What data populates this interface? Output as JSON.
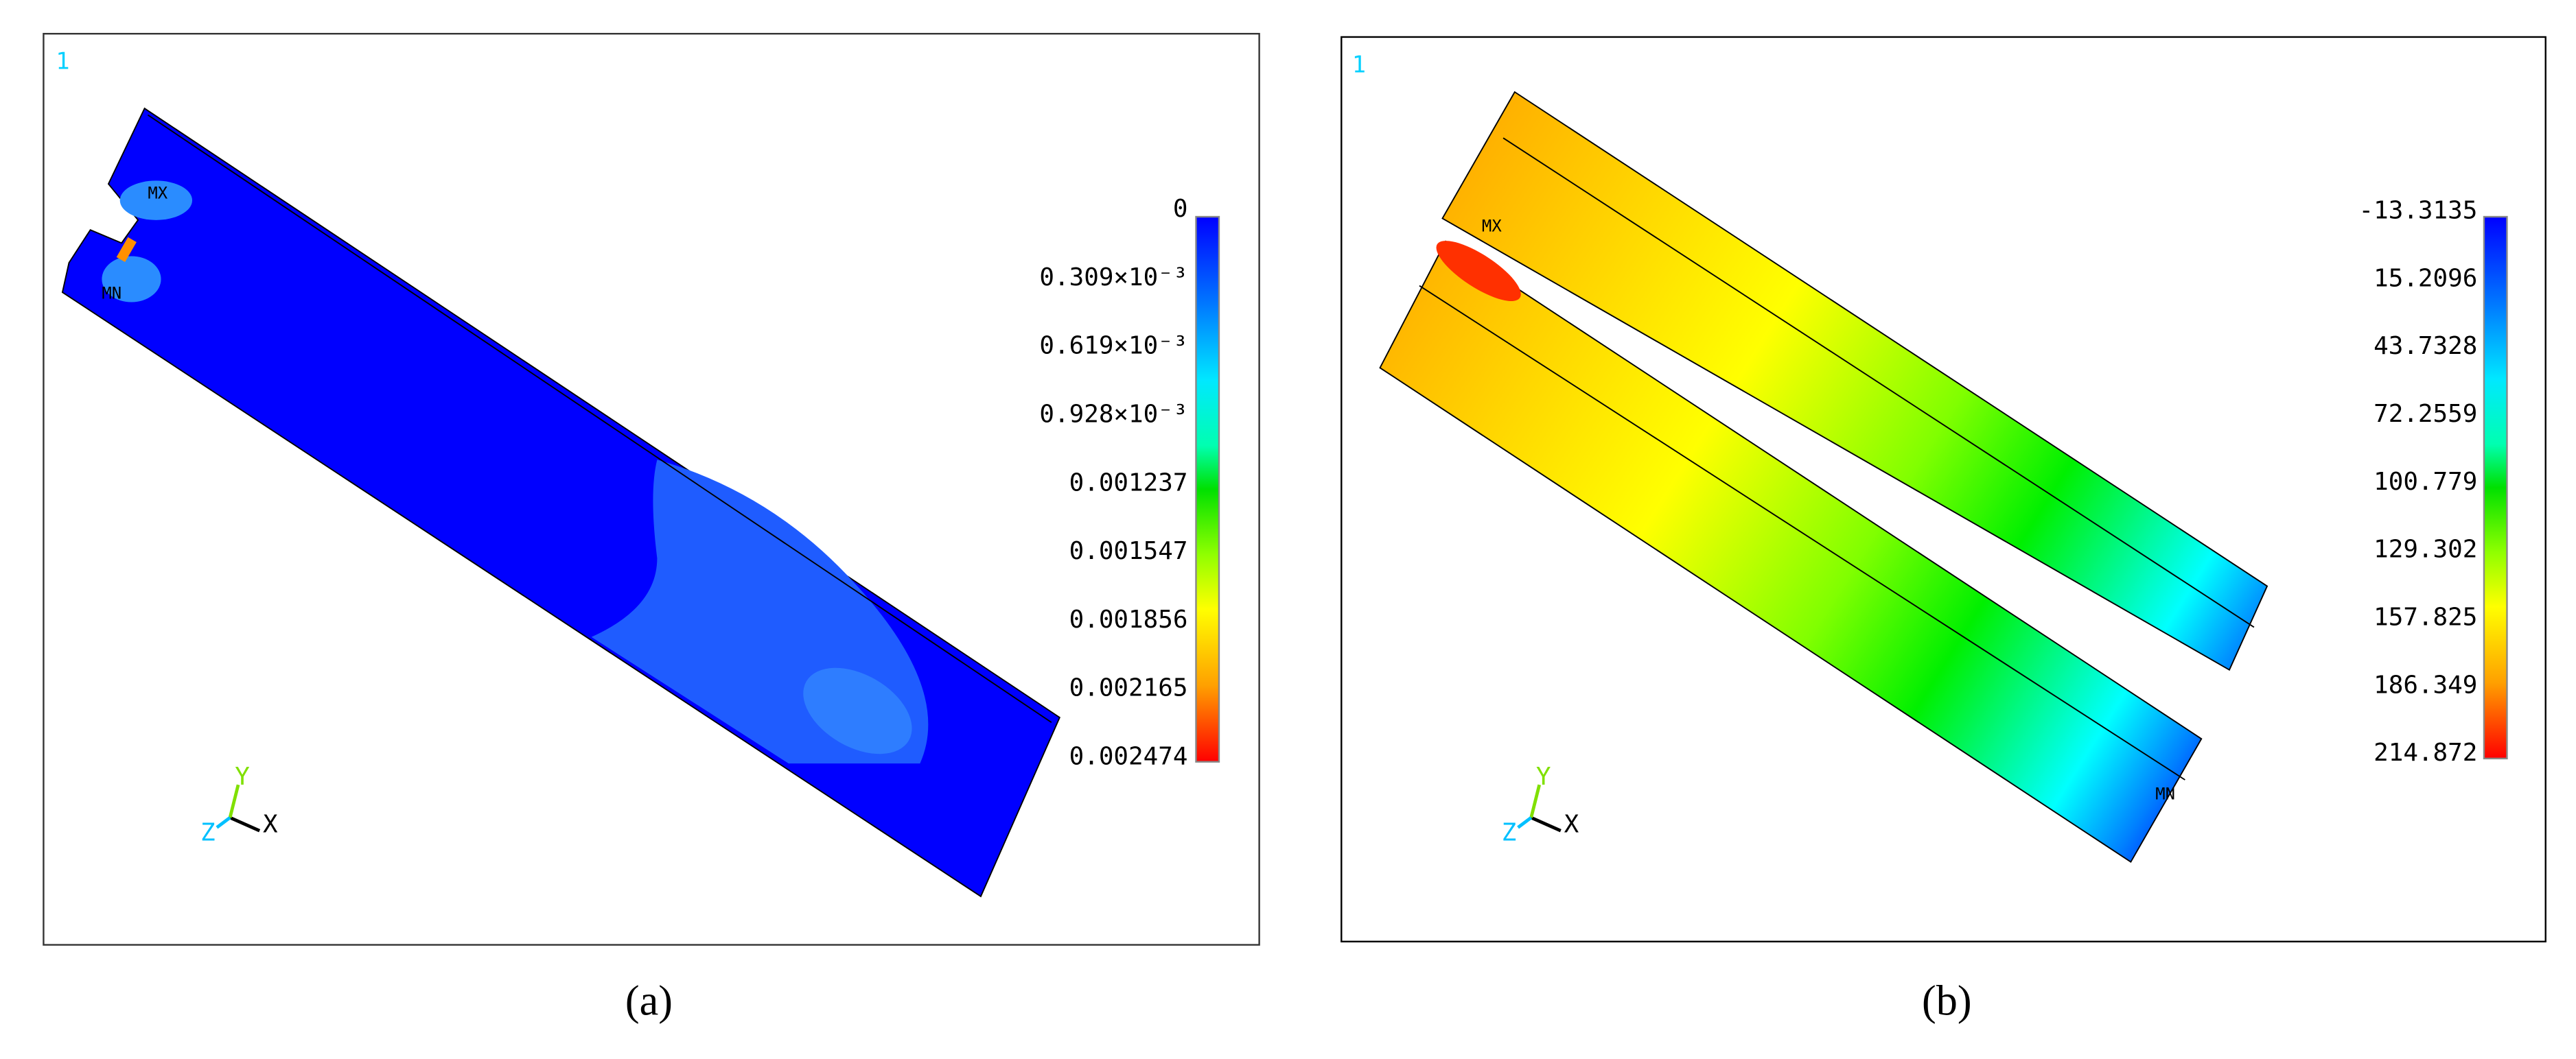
{
  "panels": [
    {
      "caption": "(a)",
      "window_number": "1",
      "max_label": "MX",
      "min_label": "MN",
      "legend": [
        "0",
        "0.309×10⁻³",
        "0.619×10⁻³",
        "0.928×10⁻³",
        "0.001237",
        "0.001547",
        "0.001856",
        "0.002165",
        "0.002474"
      ],
      "triad": {
        "x": "X",
        "y": "Y",
        "z": "Z"
      }
    },
    {
      "caption": "(b)",
      "window_number": "1",
      "max_label": "MX",
      "min_label": "MN",
      "legend": [
        "-13.3135",
        "15.2096",
        "43.7328",
        "72.2559",
        "100.779",
        "129.302",
        "157.825",
        "186.349",
        "214.872"
      ],
      "triad": {
        "x": "X",
        "y": "Y",
        "z": "Z"
      }
    }
  ]
}
